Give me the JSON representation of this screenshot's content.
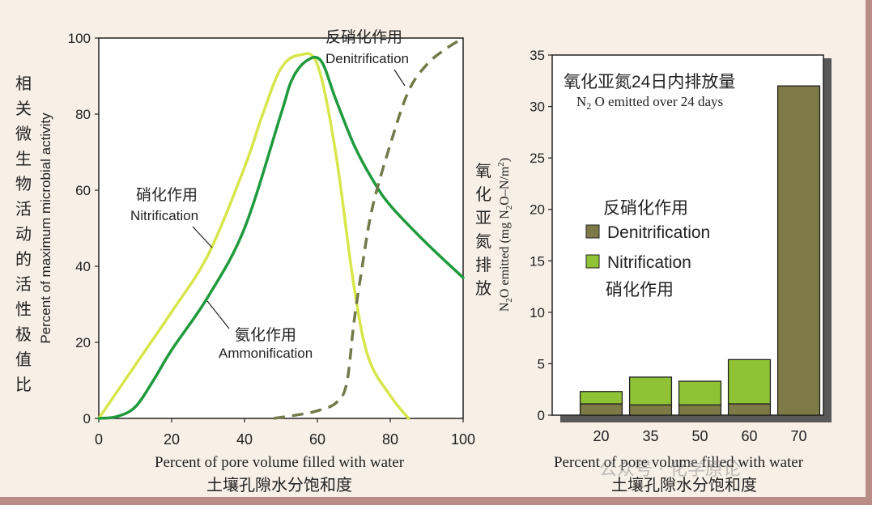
{
  "colors": {
    "ammonification": "#1f9a3c",
    "nitrification_curve": "#d6e64b",
    "denitrification_curve": "#737a49",
    "bar_denitrification": "#7e7a47",
    "bar_nitrification": "#8fc235",
    "background": "#f8efe6",
    "border": "#b98d86"
  },
  "chart_data": [
    {
      "type": "line",
      "title": "",
      "xlabel": "Percent of pore volume filled with water",
      "xlabel_cn": "土壤孔隙水分饱和度",
      "ylabel": "Percent of maximum microbial activity",
      "ylabel_cn": "相关微生物活动的活性极值比",
      "xlim": [
        0,
        100
      ],
      "ylim": [
        0,
        100
      ],
      "xticks": [
        0,
        20,
        40,
        60,
        80,
        100
      ],
      "yticks": [
        0,
        20,
        40,
        60,
        80,
        100
      ],
      "series": [
        {
          "name": "Nitrification",
          "name_cn": "硝化作用",
          "style": "solid",
          "points": [
            [
              0,
              0
            ],
            [
              10,
              14
            ],
            [
              20,
              28
            ],
            [
              30,
              43
            ],
            [
              40,
              66
            ],
            [
              45,
              80
            ],
            [
              50,
              92
            ],
            [
              55,
              95.5
            ],
            [
              60,
              93
            ],
            [
              65,
              70
            ],
            [
              70,
              35
            ],
            [
              74,
              16
            ],
            [
              80,
              6
            ],
            [
              85,
              0
            ]
          ]
        },
        {
          "name": "Ammonification",
          "name_cn": "氨化作用",
          "style": "solid",
          "points": [
            [
              0,
              0
            ],
            [
              5,
              0.5
            ],
            [
              10,
              3
            ],
            [
              15,
              10
            ],
            [
              20,
              18
            ],
            [
              30,
              32
            ],
            [
              40,
              50
            ],
            [
              50,
              80
            ],
            [
              53,
              89
            ],
            [
              57,
              94
            ],
            [
              61,
              94
            ],
            [
              65,
              84
            ],
            [
              70,
              72
            ],
            [
              75,
              63
            ],
            [
              80,
              56
            ],
            [
              90,
              46
            ],
            [
              100,
              37
            ]
          ]
        },
        {
          "name": "Denitrification",
          "name_cn": "反硝化作用",
          "style": "dashed",
          "points": [
            [
              48,
              0
            ],
            [
              55,
              1
            ],
            [
              60,
              2
            ],
            [
              65,
              4
            ],
            [
              68,
              9
            ],
            [
              70,
              25
            ],
            [
              72,
              38
            ],
            [
              75,
              55
            ],
            [
              80,
              72
            ],
            [
              85,
              86
            ],
            [
              90,
              93
            ],
            [
              95,
              97
            ],
            [
              100,
              100
            ]
          ]
        }
      ]
    },
    {
      "type": "bar",
      "title": "N2O emitted over 24 days",
      "title_cn": "氧化亚氮24日内排放量",
      "xlabel": "Percent of pore volume filled with water",
      "xlabel_cn": "土壤孔隙水分饱和度",
      "ylabel": "N2O emitted (mg N2O–N/m2)",
      "ylabel_cn": "氧化亚氮排放",
      "ylim": [
        0,
        35
      ],
      "yticks": [
        0,
        5,
        10,
        15,
        20,
        25,
        30,
        35
      ],
      "categories": [
        "20",
        "35",
        "50",
        "60",
        "70"
      ],
      "stacked": true,
      "series": [
        {
          "name": "Denitrification",
          "name_cn": "反硝化作用",
          "values": [
            1.1,
            1.0,
            1.0,
            1.1,
            32
          ]
        },
        {
          "name": "Nitrification",
          "name_cn": "硝化作用",
          "values": [
            1.2,
            2.7,
            2.3,
            4.3,
            0
          ]
        }
      ]
    }
  ],
  "labels": {
    "nitrification_cn": "硝化作用",
    "nitrification_en": "Nitrification",
    "ammonification_cn": "氨化作用",
    "ammonification_en": "Ammonification",
    "denitrification_cn": "反硝化作用",
    "denitrification_en": "Denitrification",
    "title2_cn": "氧化亚氮24日内排放量",
    "title2_en": "N2O emitted over 24 days",
    "legend_denitri_cn": "反硝化作用",
    "legend_denitri_en": "Denitrification",
    "legend_nitri_en": "Nitrification",
    "legend_nitri_cn": "硝化作用"
  },
  "watermark": "公众号 · 化学原论"
}
